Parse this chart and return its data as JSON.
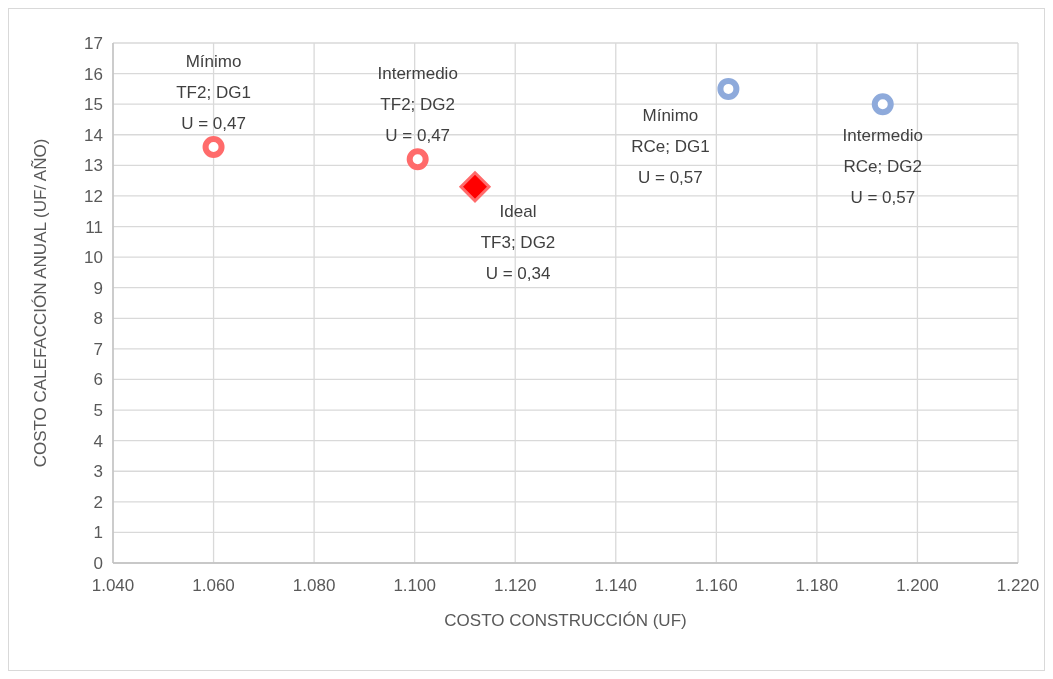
{
  "chart_data": {
    "type": "scatter",
    "xlabel": "COSTO CONSTRUCCIÓN (UF)",
    "ylabel": "COSTO CALEFACCIÓN ANUAL (UF/ AÑO)",
    "xlim": [
      1040,
      1220
    ],
    "xticks": [
      {
        "value": 1040,
        "label": "1.040"
      },
      {
        "value": 1060,
        "label": "1.060"
      },
      {
        "value": 1080,
        "label": "1.080"
      },
      {
        "value": 1100,
        "label": "1.100"
      },
      {
        "value": 1120,
        "label": "1.120"
      },
      {
        "value": 1140,
        "label": "1.140"
      },
      {
        "value": 1160,
        "label": "1.160"
      },
      {
        "value": 1180,
        "label": "1.180"
      },
      {
        "value": 1200,
        "label": "1.200"
      },
      {
        "value": 1220,
        "label": "1.220"
      }
    ],
    "ylim": [
      0,
      17
    ],
    "yticks": [
      0,
      1,
      2,
      3,
      4,
      5,
      6,
      7,
      8,
      9,
      10,
      11,
      12,
      13,
      14,
      15,
      16,
      17
    ],
    "grid": true,
    "series": [
      {
        "color": "#ff6b6b",
        "marker": "circle",
        "x": [
          1060,
          1100.6
        ],
        "values": [
          13.6,
          13.2
        ]
      },
      {
        "color": "#ff0000",
        "marker": "diamond",
        "x": [
          1112
        ],
        "values": [
          12.3
        ]
      },
      {
        "color": "#8eaadb",
        "marker": "circle",
        "x": [
          1162.4,
          1193.1
        ],
        "values": [
          15.5,
          15.0
        ]
      }
    ],
    "annotations": [
      {
        "text": "Mínimo\nTF2; DG1\nU = 0,47",
        "x": 1060,
        "y": 13.6
      },
      {
        "text": "Intermedio\nTF2; DG2\nU = 0,47",
        "x": 1100.6,
        "y": 13.2
      },
      {
        "text": "Ideal\nTF3; DG2\nU = 0,34",
        "x": 1112,
        "y": 12.3
      },
      {
        "text": "Mínimo\nRCe; DG1\nU = 0,57",
        "x": 1162.4,
        "y": 15.5
      },
      {
        "text": "Intermedio\nRCe; DG2\nU = 0,57",
        "x": 1193.1,
        "y": 15.0
      }
    ]
  }
}
